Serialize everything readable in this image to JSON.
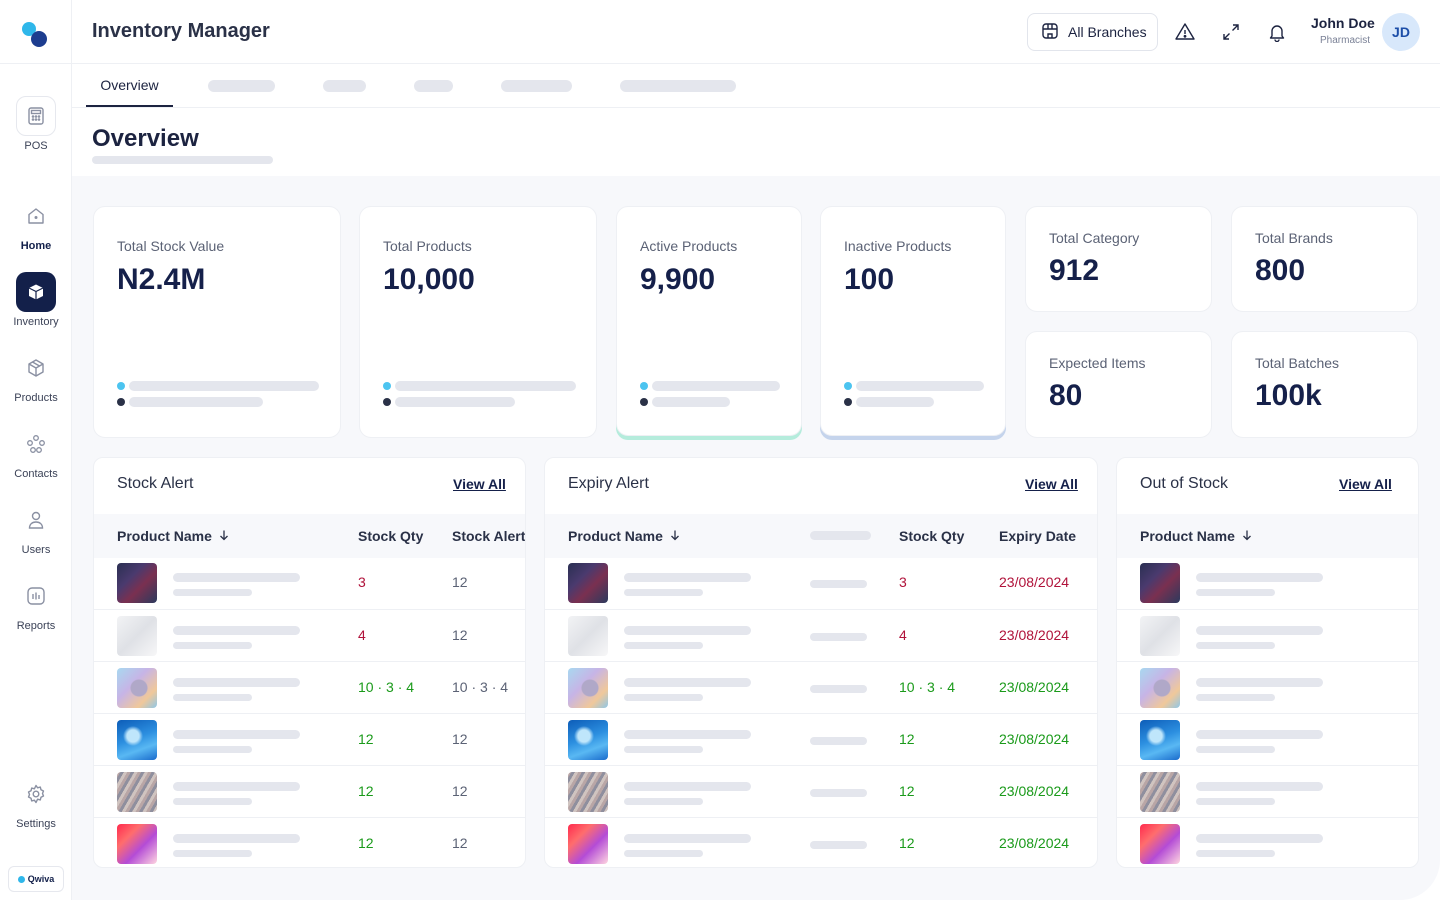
{
  "app": {
    "title": "Inventory Manager"
  },
  "sidebar": {
    "items": [
      {
        "label": "POS",
        "icon": "calculator-icon"
      },
      {
        "label": "Home",
        "icon": "home-icon"
      },
      {
        "label": "Inventory",
        "icon": "cube-icon"
      },
      {
        "label": "Products",
        "icon": "package-icon"
      },
      {
        "label": "Contacts",
        "icon": "contacts-icon"
      },
      {
        "label": "Users",
        "icon": "user-icon"
      },
      {
        "label": "Reports",
        "icon": "report-icon"
      },
      {
        "label": "Settings",
        "icon": "gear-icon"
      }
    ],
    "brand": "Qwiva"
  },
  "header": {
    "branch_label": "All Branches",
    "user": {
      "name": "John Doe",
      "role": "Pharmacist",
      "initials": "JD"
    }
  },
  "tabs": {
    "active": "Overview"
  },
  "page": {
    "title": "Overview"
  },
  "stats": {
    "total_stock_value": {
      "label": "Total Stock Value",
      "value": "N2.4M"
    },
    "total_products": {
      "label": "Total Products",
      "value": "10,000"
    },
    "active_products": {
      "label": "Active Products",
      "value": "9,900"
    },
    "inactive_products": {
      "label": "Inactive Products",
      "value": "100"
    },
    "total_category": {
      "label": "Total Category",
      "value": "912"
    },
    "total_brands": {
      "label": "Total Brands",
      "value": "800"
    },
    "expected_items": {
      "label": "Expected Items",
      "value": "80"
    },
    "total_batches": {
      "label": "Total Batches",
      "value": "100k"
    }
  },
  "stock_alert": {
    "title": "Stock Alert",
    "view_all": "View All",
    "columns": [
      "Product Name",
      "Stock Qty",
      "Stock Alert"
    ],
    "rows": [
      {
        "qty": "3",
        "alert": "12"
      },
      {
        "qty": "4",
        "alert": "12"
      },
      {
        "qty": "10 · 3 · 4",
        "alert": "10 · 3 · 4"
      },
      {
        "qty": "12",
        "alert": "12"
      },
      {
        "qty": "12",
        "alert": "12"
      },
      {
        "qty": "12",
        "alert": "12"
      }
    ]
  },
  "expiry_alert": {
    "title": "Expiry Alert",
    "view_all": "View All",
    "columns": [
      "Product Name",
      "Stock Qty",
      "Expiry Date"
    ],
    "rows": [
      {
        "qty": "3",
        "date": "23/08/2024"
      },
      {
        "qty": "4",
        "date": "23/08/2024"
      },
      {
        "qty": "10 · 3 · 4",
        "date": "23/08/2024"
      },
      {
        "qty": "12",
        "date": "23/08/2024"
      },
      {
        "qty": "12",
        "date": "23/08/2024"
      },
      {
        "qty": "12",
        "date": "23/08/2024"
      }
    ]
  },
  "out_of_stock": {
    "title": "Out of Stock",
    "view_all": "View All",
    "columns": [
      "Product Name"
    ]
  },
  "colors": {
    "primary": "#13204a",
    "accent": "#2fb7ea",
    "danger": "#b0123a",
    "success": "#1a9a1a"
  }
}
